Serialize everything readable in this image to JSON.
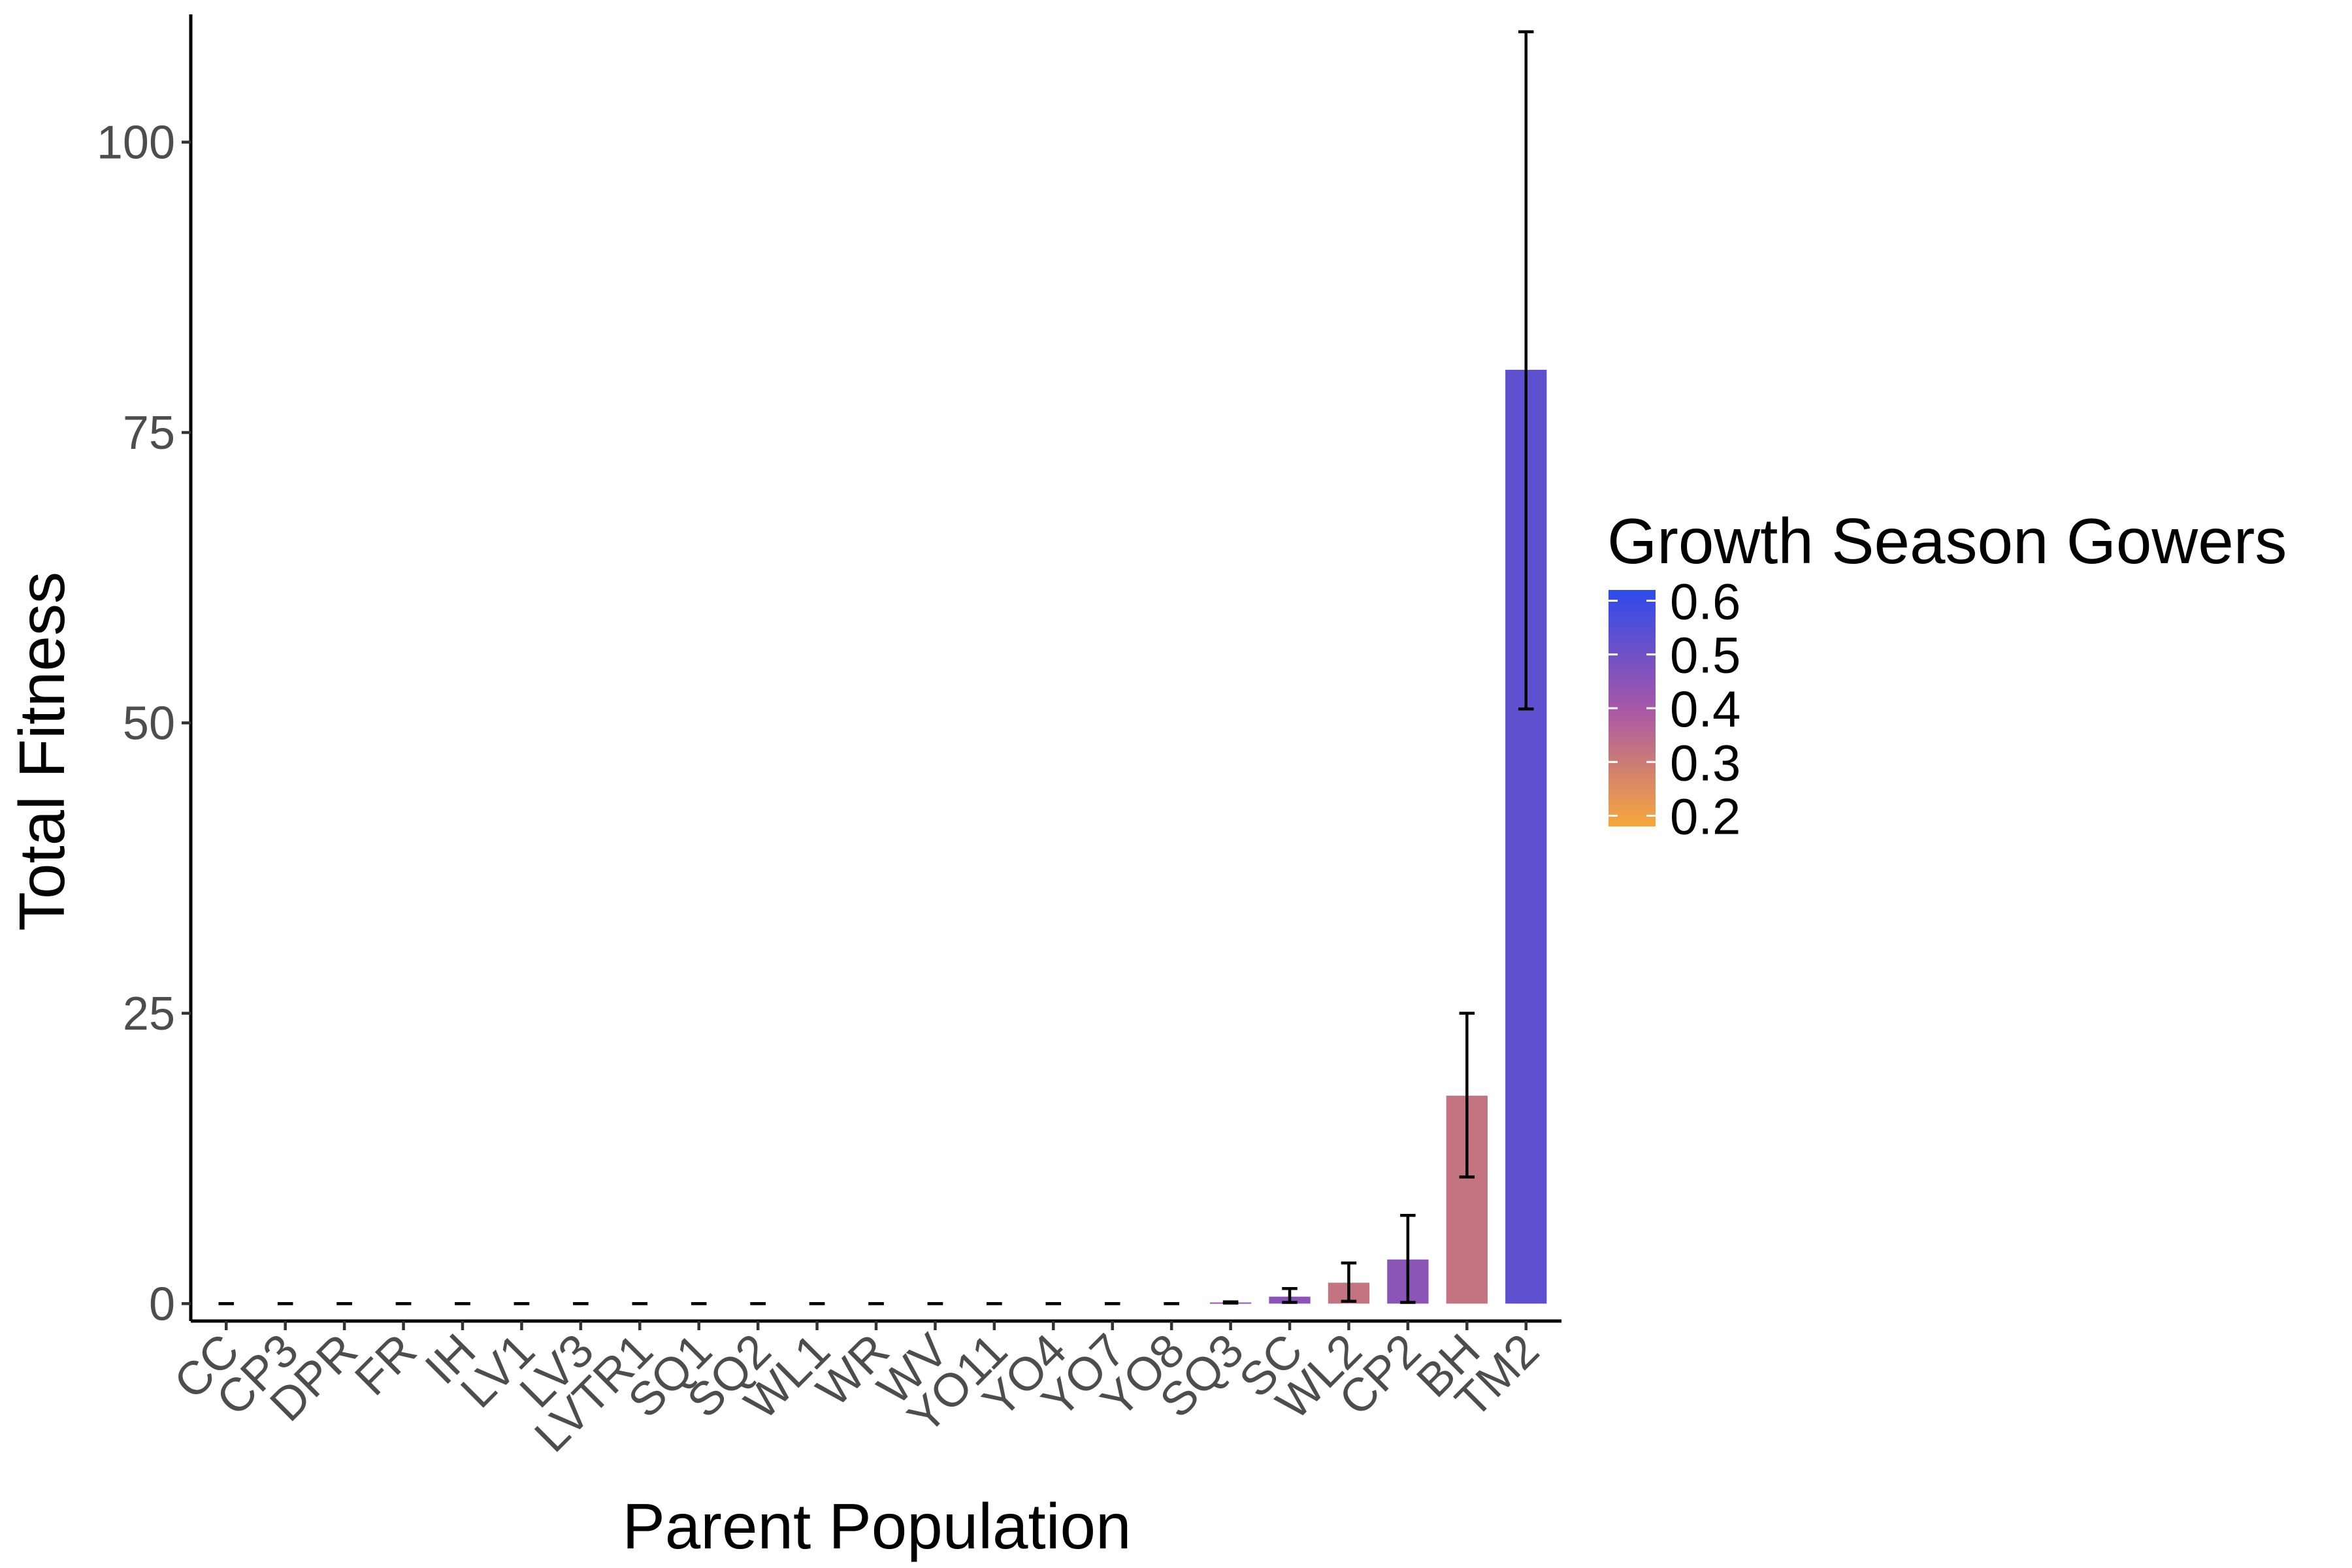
{
  "chart_data": {
    "type": "bar",
    "xlabel": "Parent Population",
    "ylabel": "Total Fitness",
    "ylim": [
      -1.5,
      111
    ],
    "yticks": [
      0,
      25,
      50,
      75,
      100
    ],
    "ytick_labels": [
      "0",
      "25",
      "50",
      "75",
      "100"
    ],
    "grid": false,
    "categories": [
      "CC",
      "CP3",
      "DPR",
      "FR",
      "IH",
      "LV1",
      "LV3",
      "LVTR1",
      "SQ1",
      "SQ2",
      "WL1",
      "WR",
      "WV",
      "YO11",
      "YO4",
      "YO7",
      "YO8",
      "SQ3",
      "SC",
      "WL2",
      "CP2",
      "BH",
      "TM2"
    ],
    "values": [
      0,
      0,
      0,
      0,
      0,
      0,
      0,
      0,
      0,
      0,
      0,
      0,
      0,
      0,
      0,
      0,
      0,
      0.1,
      0.6,
      1.8,
      3.8,
      17.9,
      80.4
    ],
    "error_low": [
      0,
      0,
      0,
      0,
      0,
      0,
      0,
      0,
      0,
      0,
      0,
      0,
      0,
      0,
      0,
      0,
      0,
      0.05,
      0.1,
      0.2,
      0.1,
      10.9,
      51.2
    ],
    "error_high": [
      0,
      0,
      0,
      0,
      0,
      0,
      0,
      0,
      0,
      0,
      0,
      0,
      0,
      0,
      0,
      0,
      0,
      0.15,
      1.3,
      3.5,
      7.6,
      25.0,
      109.5
    ],
    "fill_values": [
      0.45,
      0.45,
      0.45,
      0.45,
      0.45,
      0.45,
      0.45,
      0.45,
      0.45,
      0.45,
      0.45,
      0.45,
      0.45,
      0.45,
      0.45,
      0.45,
      0.45,
      0.42,
      0.45,
      0.32,
      0.45,
      0.32,
      0.53
    ],
    "legend": {
      "title": "Growth Season Gowers",
      "placement": "right",
      "range": [
        0.18,
        0.62
      ],
      "ticks": [
        0.6,
        0.5,
        0.4,
        0.3,
        0.2
      ],
      "tick_labels": [
        "0.6",
        "0.5",
        "0.4",
        "0.3",
        "0.2"
      ],
      "color_low": "#F7A83B",
      "color_mid": "#A656A8",
      "color_high": "#2E4BEB"
    }
  }
}
